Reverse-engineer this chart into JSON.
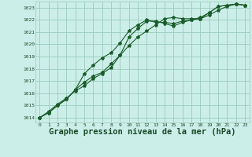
{
  "bg_color": "#cceee8",
  "grid_color": "#99ccbb",
  "line_color": "#1a5c2a",
  "xlabel": "Graphe pression niveau de la mer (hPa)",
  "xlabel_fontsize": 7.5,
  "xticks": [
    0,
    1,
    2,
    3,
    4,
    5,
    6,
    7,
    8,
    9,
    10,
    11,
    12,
    13,
    14,
    15,
    16,
    17,
    18,
    19,
    20,
    21,
    22,
    23
  ],
  "yticks": [
    1014,
    1015,
    1016,
    1017,
    1018,
    1019,
    1020,
    1021,
    1022,
    1023
  ],
  "xlim": [
    -0.5,
    23.5
  ],
  "ylim": [
    1013.6,
    1023.5
  ],
  "series1_x": [
    0,
    1,
    2,
    3,
    4,
    5,
    6,
    7,
    8,
    9,
    10,
    11,
    12,
    13,
    14,
    15,
    16,
    17,
    18,
    19,
    20,
    21,
    22,
    23
  ],
  "series1_y": [
    1014.0,
    1014.5,
    1015.1,
    1015.6,
    1016.2,
    1016.6,
    1017.2,
    1017.6,
    1018.1,
    1019.1,
    1020.6,
    1021.3,
    1021.9,
    1021.9,
    1021.7,
    1021.5,
    1021.8,
    1022.0,
    1022.1,
    1022.4,
    1022.8,
    1023.1,
    1023.3,
    1023.2
  ],
  "series2_x": [
    0,
    1,
    2,
    3,
    4,
    5,
    6,
    7,
    8,
    9,
    10,
    11,
    12,
    13,
    14,
    15,
    16,
    17,
    18,
    19,
    20,
    21,
    22,
    23
  ],
  "series2_y": [
    1014.0,
    1014.4,
    1015.0,
    1015.5,
    1016.3,
    1017.6,
    1018.3,
    1018.9,
    1019.3,
    1020.1,
    1021.1,
    1021.6,
    1022.0,
    1021.8,
    1021.8,
    1021.7,
    1021.9,
    1022.0,
    1022.2,
    1022.6,
    1023.1,
    1023.2,
    1023.3,
    1023.2
  ],
  "series3_x": [
    0,
    1,
    2,
    3,
    4,
    5,
    6,
    7,
    8,
    9,
    10,
    11,
    12,
    13,
    14,
    15,
    16,
    17,
    18,
    19,
    20,
    21,
    22,
    23
  ],
  "series3_y": [
    1014.0,
    1014.4,
    1015.0,
    1015.5,
    1016.3,
    1016.9,
    1017.4,
    1017.7,
    1018.4,
    1019.1,
    1019.9,
    1020.6,
    1021.1,
    1021.6,
    1022.1,
    1022.2,
    1022.1,
    1022.1,
    1022.1,
    1022.6,
    1023.1,
    1023.2,
    1023.3,
    1023.2
  ]
}
